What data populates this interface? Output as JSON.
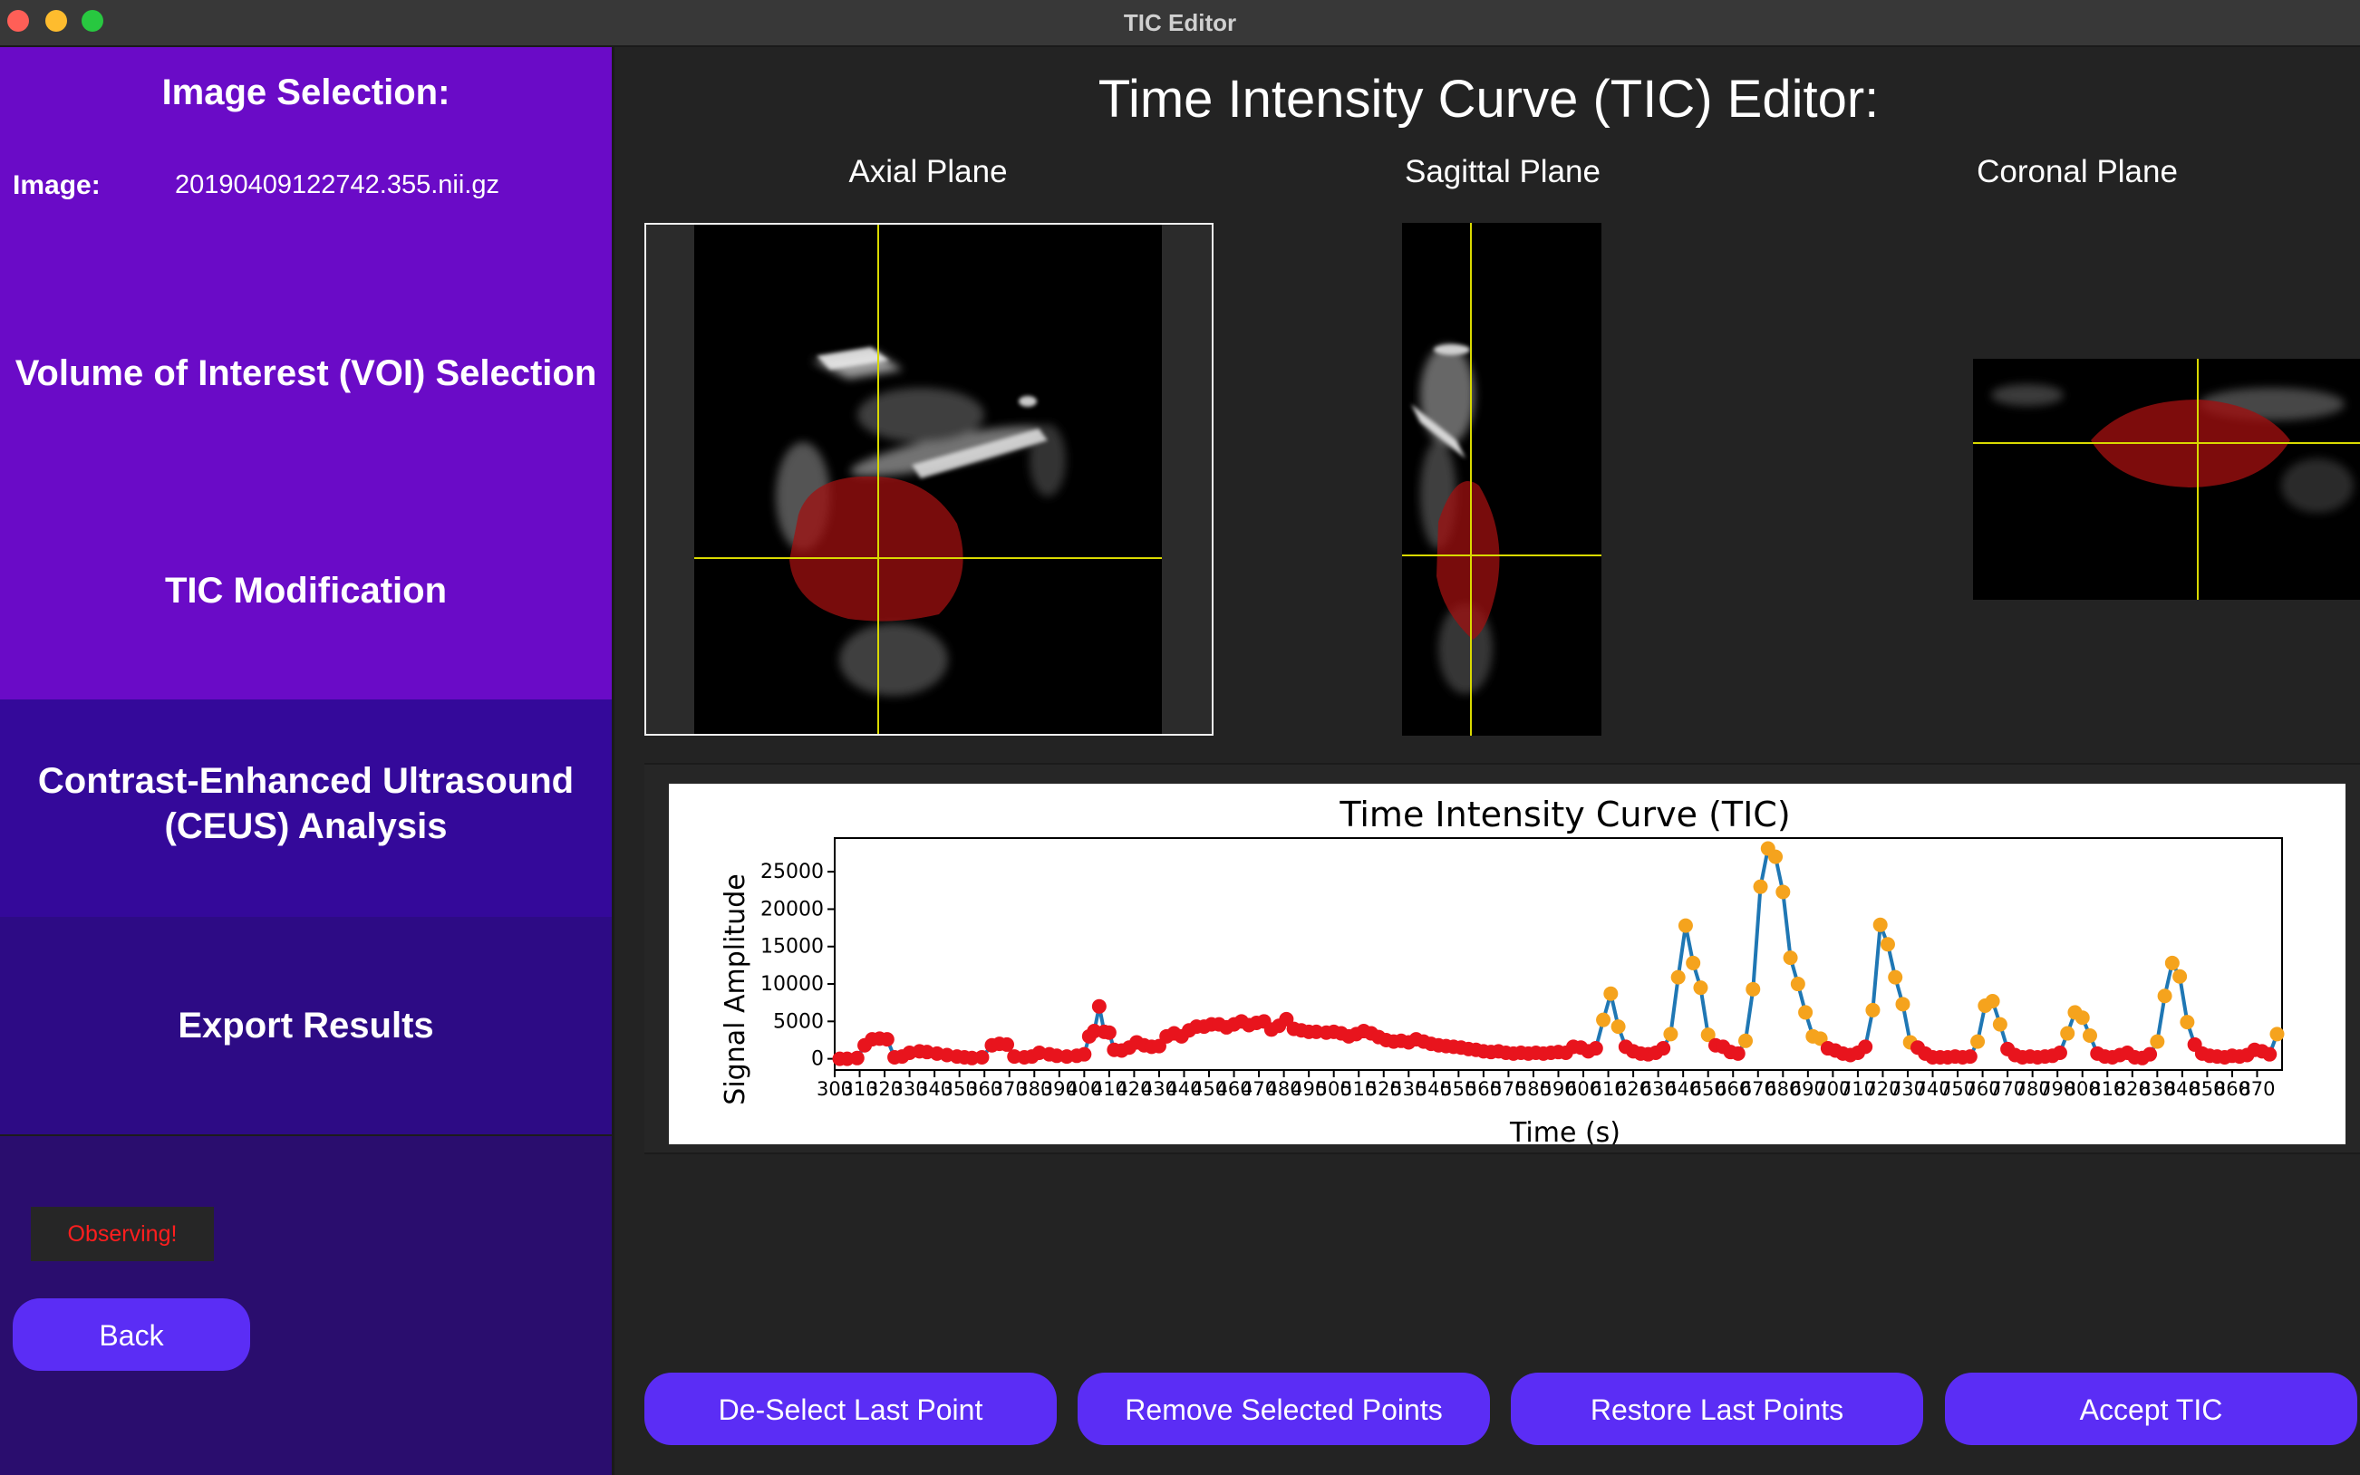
{
  "window": {
    "title": "TIC Editor"
  },
  "sidebar": {
    "image_selection": {
      "title": "Image Selection:",
      "image_label": "Image:",
      "image_value": "20190409122742.355.nii.gz"
    },
    "voi_selection": {
      "title": "Volume of Interest (VOI) Selection"
    },
    "tic_modification": {
      "title": "TIC Modification"
    },
    "ceus_analysis": {
      "title_line1": "Contrast-Enhanced Ultrasound",
      "title_line2": "(CEUS) Analysis"
    },
    "export_results": {
      "title": "Export Results"
    },
    "status": "Observing!",
    "back_label": "Back"
  },
  "main": {
    "heading": "Time Intensity Curve (TIC) Editor:",
    "planes": {
      "axial": "Axial Plane",
      "sagittal": "Sagittal Plane",
      "coronal": "Coronal Plane"
    },
    "buttons": {
      "deselect": "De-Select Last Point",
      "remove": "Remove Selected Points",
      "restore": "Restore Last Points",
      "accept": "Accept TIC"
    }
  },
  "colors": {
    "sidebar_active": "#6a0bc7",
    "sidebar_dark": "#2a0d6e",
    "button": "#5b2df5",
    "line": "#1f77b4",
    "selected_point": "#f5a31d",
    "point": "#e8141d",
    "crosshair": "#e5e500"
  },
  "chart_data": {
    "type": "line",
    "title": "Time Intensity Curve (TIC)",
    "xlabel": "Time (s)",
    "ylabel": "Signal Amplitude",
    "xlim": [
      300,
      880
    ],
    "ylim": [
      -1500,
      29500
    ],
    "yticks": [
      0,
      5000,
      10000,
      15000,
      20000,
      25000
    ],
    "series": [
      {
        "points": [
          [
            302,
            0
          ],
          [
            305,
            0
          ],
          [
            309,
            100
          ],
          [
            312,
            1800
          ],
          [
            315,
            2600
          ],
          [
            318,
            2700
          ],
          [
            321,
            2600
          ],
          [
            324,
            200
          ],
          [
            327,
            300
          ],
          [
            330,
            800
          ],
          [
            334,
            1000
          ],
          [
            337,
            900
          ],
          [
            341,
            700
          ],
          [
            345,
            500
          ],
          [
            349,
            300
          ],
          [
            352,
            200
          ],
          [
            355,
            100
          ],
          [
            359,
            200
          ],
          [
            363,
            1800
          ],
          [
            366,
            2000
          ],
          [
            369,
            1900
          ],
          [
            372,
            300
          ],
          [
            376,
            200
          ],
          [
            379,
            300
          ],
          [
            382,
            800
          ],
          [
            386,
            600
          ],
          [
            389,
            400
          ],
          [
            393,
            300
          ],
          [
            397,
            400
          ],
          [
            400,
            600
          ],
          [
            402,
            3000
          ],
          [
            404,
            3700
          ],
          [
            406,
            7000
          ],
          [
            408,
            3600
          ],
          [
            410,
            3500
          ],
          [
            412,
            1200
          ],
          [
            415,
            1100
          ],
          [
            418,
            1500
          ],
          [
            421,
            2200
          ],
          [
            424,
            1800
          ],
          [
            427,
            1600
          ],
          [
            430,
            1700
          ],
          [
            433,
            3000
          ],
          [
            436,
            3400
          ],
          [
            439,
            3000
          ],
          [
            442,
            3800
          ],
          [
            445,
            4300
          ],
          [
            448,
            4300
          ],
          [
            451,
            4600
          ],
          [
            454,
            4600
          ],
          [
            457,
            4200
          ],
          [
            460,
            4600
          ],
          [
            463,
            5000
          ],
          [
            466,
            4500
          ],
          [
            469,
            4800
          ],
          [
            472,
            5000
          ],
          [
            475,
            3900
          ],
          [
            478,
            4400
          ],
          [
            481,
            5300
          ],
          [
            484,
            4000
          ],
          [
            487,
            3800
          ],
          [
            490,
            3600
          ],
          [
            493,
            3600
          ],
          [
            497,
            3500
          ],
          [
            500,
            3600
          ],
          [
            503,
            3400
          ],
          [
            506,
            3000
          ],
          [
            509,
            3300
          ],
          [
            512,
            3700
          ],
          [
            515,
            3400
          ],
          [
            518,
            2900
          ],
          [
            521,
            2500
          ],
          [
            524,
            2300
          ],
          [
            527,
            2400
          ],
          [
            530,
            2200
          ],
          [
            533,
            2600
          ],
          [
            536,
            2300
          ],
          [
            539,
            2000
          ],
          [
            542,
            1800
          ],
          [
            545,
            1700
          ],
          [
            548,
            1600
          ],
          [
            551,
            1500
          ],
          [
            554,
            1300
          ],
          [
            557,
            1200
          ],
          [
            560,
            1000
          ],
          [
            563,
            900
          ],
          [
            566,
            1000
          ],
          [
            569,
            800
          ],
          [
            572,
            700
          ],
          [
            575,
            800
          ],
          [
            578,
            700
          ],
          [
            581,
            800
          ],
          [
            584,
            700
          ],
          [
            587,
            800
          ],
          [
            590,
            900
          ],
          [
            593,
            800
          ],
          [
            596,
            1600
          ],
          [
            599,
            1500
          ],
          [
            602,
            1000
          ],
          [
            605,
            1400
          ],
          [
            608,
            5200
          ],
          [
            611,
            8700
          ],
          [
            614,
            4300
          ],
          [
            617,
            1600
          ],
          [
            620,
            1000
          ],
          [
            623,
            700
          ],
          [
            626,
            600
          ],
          [
            629,
            800
          ],
          [
            632,
            1400
          ],
          [
            635,
            3300
          ],
          [
            638,
            10900
          ],
          [
            641,
            17800
          ],
          [
            644,
            12800
          ],
          [
            647,
            9500
          ],
          [
            650,
            3200
          ],
          [
            653,
            1800
          ],
          [
            656,
            1600
          ],
          [
            659,
            900
          ],
          [
            662,
            700
          ],
          [
            665,
            2400
          ],
          [
            668,
            9300
          ],
          [
            671,
            23000
          ],
          [
            674,
            28100
          ],
          [
            677,
            27000
          ],
          [
            680,
            22300
          ],
          [
            683,
            13500
          ],
          [
            686,
            10000
          ],
          [
            689,
            6200
          ],
          [
            692,
            3000
          ],
          [
            695,
            2700
          ],
          [
            698,
            1400
          ],
          [
            701,
            1100
          ],
          [
            704,
            700
          ],
          [
            707,
            500
          ],
          [
            710,
            800
          ],
          [
            713,
            1600
          ],
          [
            716,
            6500
          ],
          [
            719,
            17900
          ],
          [
            722,
            15300
          ],
          [
            725,
            10900
          ],
          [
            728,
            7300
          ],
          [
            731,
            2200
          ],
          [
            734,
            1500
          ],
          [
            737,
            700
          ],
          [
            740,
            200
          ],
          [
            743,
            200
          ],
          [
            746,
            200
          ],
          [
            749,
            300
          ],
          [
            752,
            200
          ],
          [
            755,
            300
          ],
          [
            758,
            2300
          ],
          [
            761,
            7100
          ],
          [
            764,
            7700
          ],
          [
            767,
            4600
          ],
          [
            770,
            1300
          ],
          [
            773,
            500
          ],
          [
            776,
            200
          ],
          [
            779,
            300
          ],
          [
            782,
            200
          ],
          [
            785,
            300
          ],
          [
            788,
            400
          ],
          [
            791,
            800
          ],
          [
            794,
            3400
          ],
          [
            797,
            6200
          ],
          [
            800,
            5500
          ],
          [
            803,
            3100
          ],
          [
            806,
            700
          ],
          [
            809,
            300
          ],
          [
            812,
            200
          ],
          [
            815,
            500
          ],
          [
            818,
            800
          ],
          [
            821,
            200
          ],
          [
            824,
            100
          ],
          [
            827,
            600
          ],
          [
            830,
            2300
          ],
          [
            833,
            8400
          ],
          [
            836,
            12800
          ],
          [
            839,
            11000
          ],
          [
            842,
            4900
          ],
          [
            845,
            1900
          ],
          [
            848,
            700
          ],
          [
            851,
            400
          ],
          [
            854,
            300
          ],
          [
            857,
            200
          ],
          [
            860,
            400
          ],
          [
            863,
            300
          ],
          [
            866,
            500
          ],
          [
            869,
            1200
          ],
          [
            872,
            1000
          ],
          [
            875,
            600
          ],
          [
            878,
            3300
          ]
        ]
      }
    ]
  }
}
